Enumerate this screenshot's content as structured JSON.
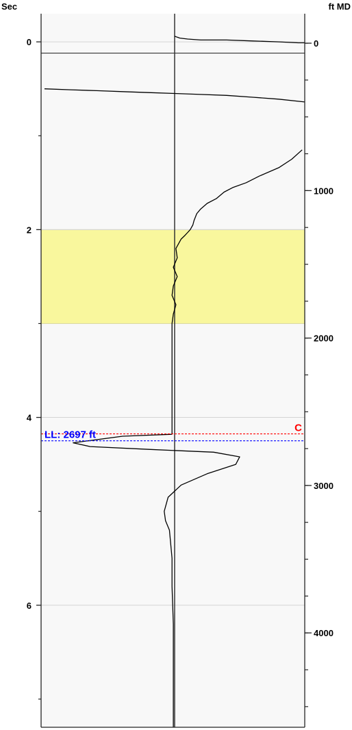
{
  "chart_data": {
    "type": "line",
    "title": "",
    "left_axis": {
      "label": "Sec",
      "lim": [
        -0.3,
        7.3
      ],
      "ticks": [
        0,
        2,
        4,
        6
      ],
      "minor_ticks": [
        1,
        3,
        5,
        7
      ],
      "gridlines": [
        0,
        2,
        4,
        6
      ]
    },
    "right_axis": {
      "label": "ft MD",
      "lim": [
        -200,
        4640
      ],
      "ticks": [
        0,
        1000,
        2000,
        3000,
        4000
      ],
      "tick_labels": [
        "0",
        "1000",
        "2000",
        "3000",
        "4000"
      ],
      "minor_step": 250
    },
    "x_axis": {
      "lim": [
        -1,
        1
      ],
      "center": 0
    },
    "highlight_band": {
      "from": 2.0,
      "to": 3.0,
      "color": "#f9f79d"
    },
    "reference_line_time": 0.12,
    "marker_lines": [
      {
        "label": "C",
        "depth": 2650,
        "color": "#ff0000",
        "label_side": "right"
      },
      {
        "label": "LL: 2697 ft",
        "depth": 2697,
        "color": "#0000ff",
        "label_side": "left"
      }
    ],
    "series": [
      {
        "x": [
          0.0,
          0.02,
          0.04,
          0.1,
          0.2,
          0.4,
          0.6,
          0.8,
          0.95,
          1.0
        ],
        "y": [
          -0.06,
          -0.05,
          -0.04,
          -0.03,
          -0.02,
          -0.02,
          -0.01,
          0.0,
          0.01,
          0.01
        ]
      },
      {
        "x": [
          -1.0,
          -0.8,
          -0.6,
          -0.4,
          -0.2,
          0.0,
          0.2,
          0.4,
          0.6,
          0.8,
          1.0
        ],
        "y": [
          0.5,
          0.51,
          0.52,
          0.53,
          0.54,
          0.55,
          0.56,
          0.57,
          0.59,
          0.61,
          0.64
        ]
      },
      {
        "x": [
          0.98,
          0.9,
          0.8,
          0.65,
          0.55,
          0.45,
          0.38,
          0.32,
          0.25,
          0.2,
          0.17,
          0.15,
          0.14,
          0.12,
          0.1,
          0.08,
          0.05,
          0.03,
          0.01,
          0.02,
          -0.01,
          0.02,
          -0.01,
          -0.02,
          0.01,
          -0.01,
          -0.02,
          -0.02,
          -0.02,
          -0.02,
          -0.02,
          -0.02
        ],
        "y": [
          1.15,
          1.25,
          1.34,
          1.43,
          1.5,
          1.55,
          1.6,
          1.67,
          1.72,
          1.78,
          1.83,
          1.9,
          1.95,
          2.0,
          2.03,
          2.06,
          2.1,
          2.15,
          2.2,
          2.3,
          2.4,
          2.5,
          2.6,
          2.7,
          2.8,
          2.9,
          3.0,
          3.2,
          3.5,
          3.8,
          4.1,
          4.18
        ]
      },
      {
        "x": [
          -0.02,
          -0.4,
          -0.78,
          -0.65,
          -0.2,
          0.3,
          0.5,
          0.47,
          0.25,
          0.05,
          -0.05,
          -0.08,
          -0.07,
          -0.04,
          -0.03,
          -0.02,
          -0.02,
          -0.01,
          -0.01,
          -0.01
        ],
        "y": [
          4.18,
          4.2,
          4.27,
          4.31,
          4.34,
          4.37,
          4.42,
          4.5,
          4.6,
          4.72,
          4.85,
          5.0,
          5.1,
          5.2,
          5.35,
          5.5,
          5.8,
          6.2,
          6.8,
          7.3
        ]
      }
    ]
  }
}
